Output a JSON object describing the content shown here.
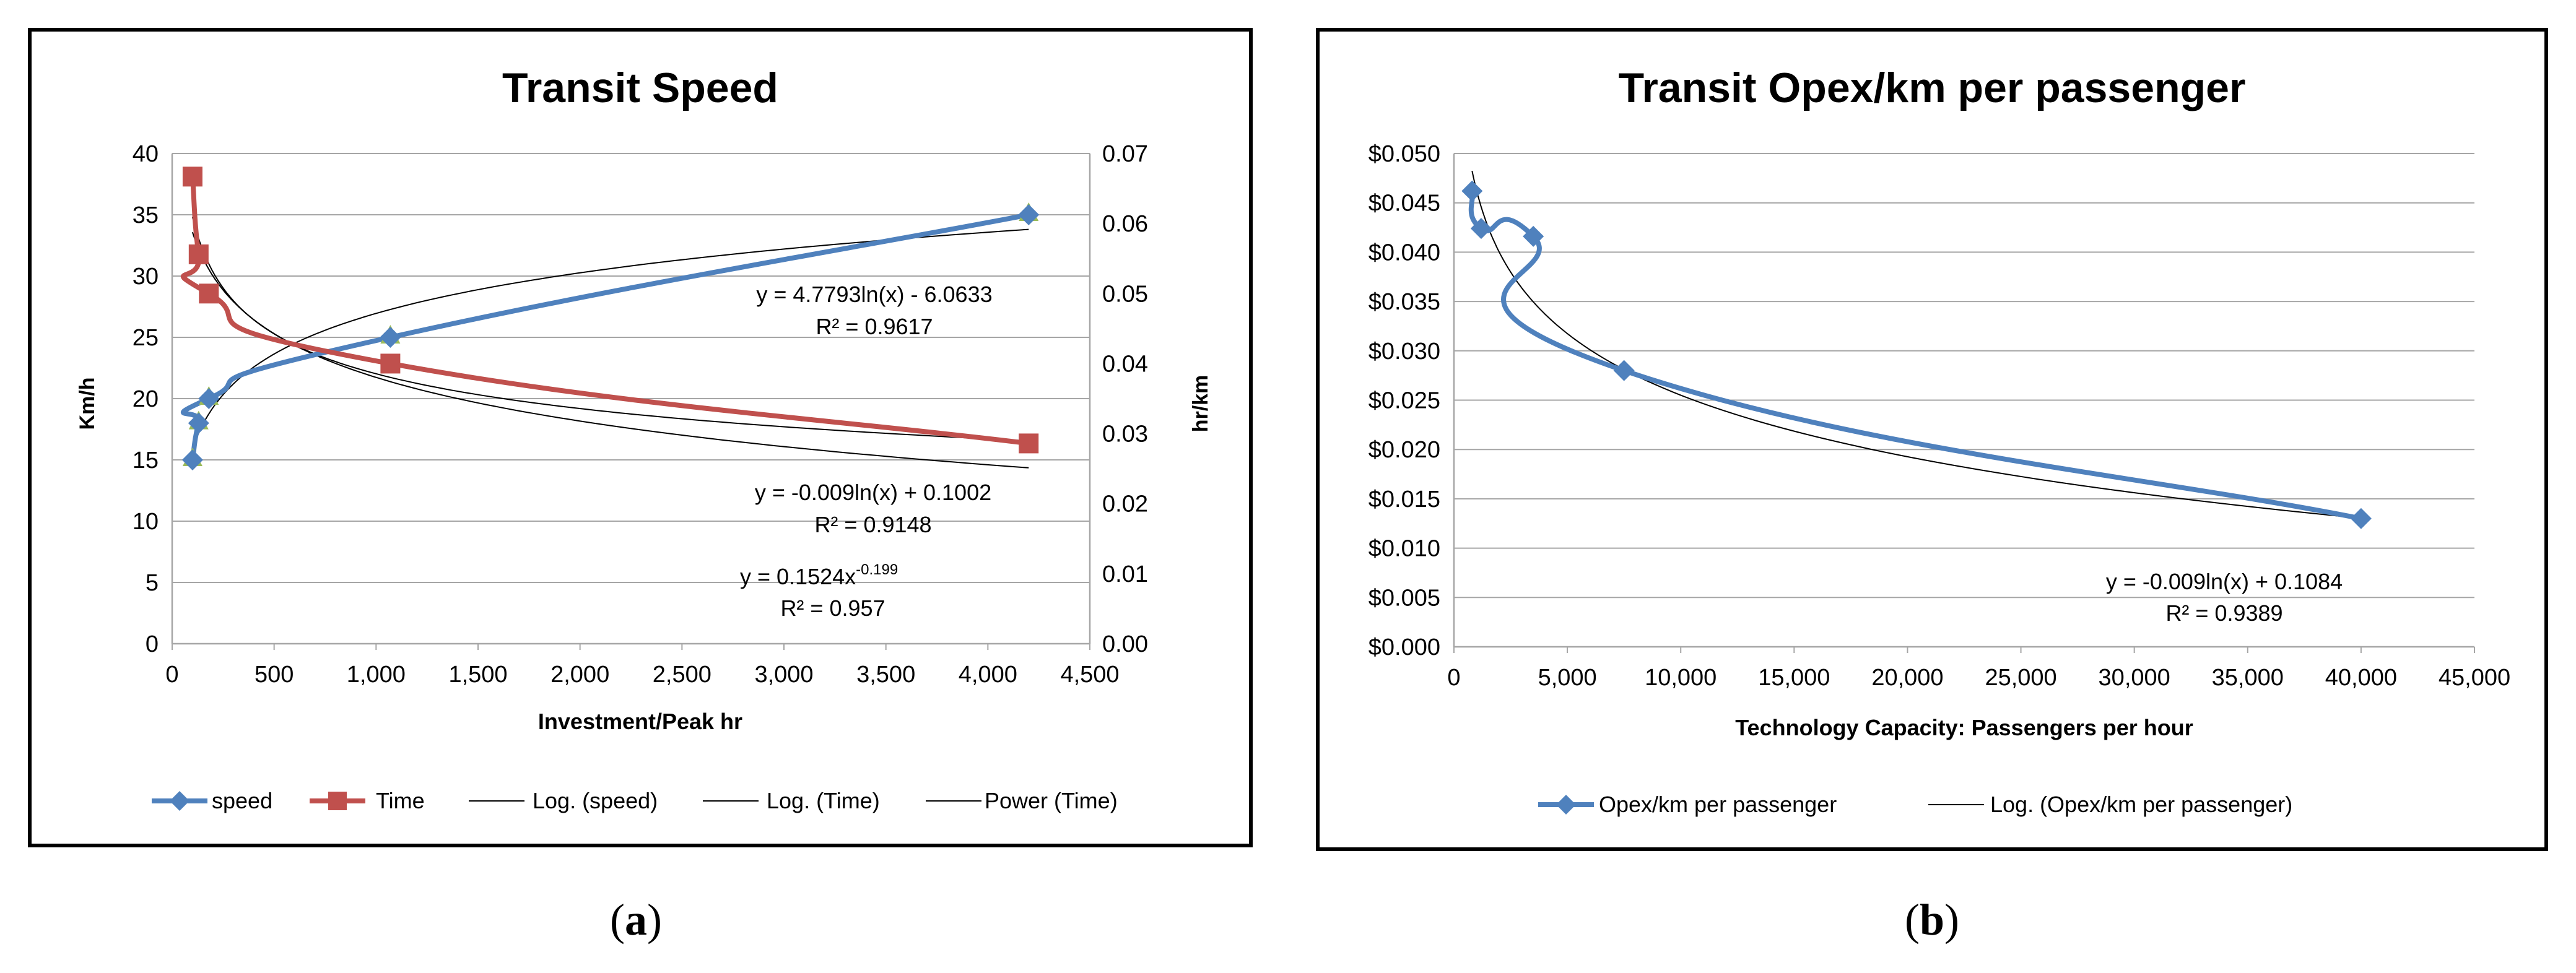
{
  "colors": {
    "speed": "#4F81BD",
    "time": "#C0504D",
    "trend": "#000000",
    "grid": "#A6A6A6",
    "frame": "#000000",
    "speed_marker_under": "#9BBB59"
  },
  "chart_data": [
    {
      "id": "a",
      "type": "line",
      "title": "Transit Speed",
      "caption": "a",
      "xlabel": "Investment/Peak hr",
      "ylabel": "Km/h",
      "y2label": "hr/km",
      "xlim": [
        0,
        4500
      ],
      "ylim": [
        0,
        40
      ],
      "y2lim": [
        0,
        0.07
      ],
      "x_ticks": [
        "0",
        "500",
        "1,000",
        "1,500",
        "2,000",
        "2,500",
        "3,000",
        "3,500",
        "4,000",
        "4,500"
      ],
      "y_ticks": [
        "0",
        "5",
        "10",
        "15",
        "20",
        "25",
        "30",
        "35",
        "40"
      ],
      "y2_ticks": [
        "0.00",
        "0.01",
        "0.02",
        "0.03",
        "0.04",
        "0.05",
        "0.06",
        "0.07"
      ],
      "grid": true,
      "series": [
        {
          "name": "speed",
          "axis": "left",
          "marker": "diamond",
          "x": [
            100,
            130,
            180,
            1070,
            4200
          ],
          "y": [
            15,
            18,
            20,
            25,
            35
          ]
        },
        {
          "name": "Time",
          "axis": "right",
          "marker": "square",
          "x": [
            100,
            130,
            180,
            1070,
            4200
          ],
          "y": [
            0.0667,
            0.0556,
            0.05,
            0.04,
            0.0286
          ]
        }
      ],
      "trendlines": [
        {
          "name": "Log. (speed)",
          "kind": "log",
          "axis": "left",
          "a": 4.7793,
          "b": -6.0633,
          "xrange": [
            100,
            4200
          ]
        },
        {
          "name": "Log. (Time)",
          "kind": "log",
          "axis": "right",
          "a": -0.009,
          "b": 0.1002,
          "xrange": [
            100,
            4200
          ]
        },
        {
          "name": "Power (Time)",
          "kind": "power",
          "axis": "right",
          "a": 0.1524,
          "b": -0.199,
          "xrange": [
            100,
            4200
          ]
        }
      ],
      "legend": [
        "speed",
        "Time",
        "Log. (speed)",
        "Log. (Time)",
        "Power (Time)"
      ],
      "legend_position": "bottom",
      "annotations": {
        "speed_eq": "y = 4.7793ln(x) - 6.0633",
        "speed_r2": "R² = 0.9617",
        "time_log_eq": "y = -0.009ln(x) + 0.1002",
        "time_log_r2": "R² = 0.9148",
        "time_pow_eq_base": "y = 0.1524x",
        "time_pow_eq_exp": "-0.199",
        "time_pow_r2": "R² = 0.957"
      }
    },
    {
      "id": "b",
      "type": "line",
      "title": "Transit Opex/km per passenger",
      "caption": "b",
      "xlabel": "Technology Capacity: Passengers per hour",
      "ylabel": "",
      "xlim": [
        0,
        45000
      ],
      "ylim": [
        0,
        0.05
      ],
      "x_ticks": [
        "0",
        "5,000",
        "10,000",
        "15,000",
        "20,000",
        "25,000",
        "30,000",
        "35,000",
        "40,000",
        "45,000"
      ],
      "y_ticks": [
        "$0.000",
        "$0.005",
        "$0.010",
        "$0.015",
        "$0.020",
        "$0.025",
        "$0.030",
        "$0.035",
        "$0.040",
        "$0.045",
        "$0.050"
      ],
      "grid": true,
      "series": [
        {
          "name": "Opex/km per passenger",
          "axis": "left",
          "marker": "diamond",
          "x": [
            800,
            1200,
            3500,
            7500,
            40000
          ],
          "y": [
            0.0462,
            0.0424,
            0.0416,
            0.028,
            0.013
          ]
        }
      ],
      "trendlines": [
        {
          "name": "Log. (Opex/km per passenger)",
          "kind": "log",
          "axis": "left",
          "a": -0.009,
          "b": 0.1084,
          "xrange": [
            800,
            40000
          ]
        }
      ],
      "legend": [
        "Opex/km per passenger",
        "Log. (Opex/km per passenger)"
      ],
      "legend_position": "bottom",
      "annotations": {
        "eq": "y = -0.009ln(x) + 0.1084",
        "r2": "R² = 0.9389"
      }
    }
  ]
}
